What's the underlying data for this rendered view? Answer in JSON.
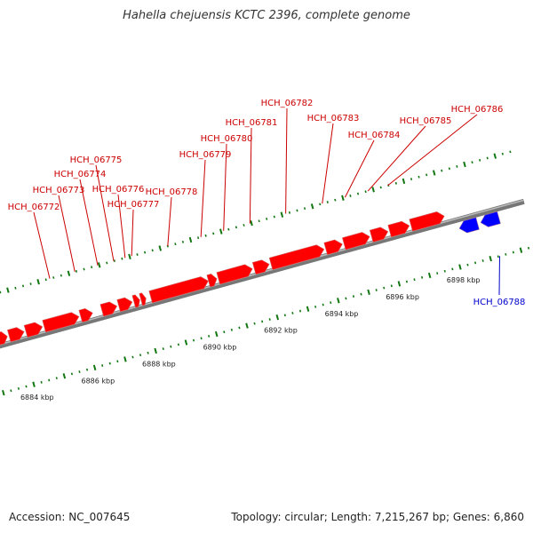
{
  "title": "Hahella chejuensis KCTC 2396, complete genome",
  "footer": {
    "accession": "Accession: NC_007645",
    "summary": "Topology: circular; Length: 7,215,267 bp; Genes: 6,860"
  },
  "colors": {
    "forward_gene": "#ff0000",
    "reverse_gene": "#0000ff",
    "backbone": "#888888",
    "tick": "#117711",
    "forward_label": "#cc0000",
    "reverse_label": "#0000cc"
  },
  "scale": {
    "unit": "kbp",
    "ticks": [
      {
        "kbp": 6884,
        "label": "6884 kbp"
      },
      {
        "kbp": 6886,
        "label": "6886 kbp"
      },
      {
        "kbp": 6888,
        "label": "6888 kbp"
      },
      {
        "kbp": 6890,
        "label": "6890 kbp"
      },
      {
        "kbp": 6892,
        "label": "6892 kbp"
      },
      {
        "kbp": 6894,
        "label": "6894 kbp"
      },
      {
        "kbp": 6896,
        "label": "6896 kbp"
      },
      {
        "kbp": 6898,
        "label": "6898 kbp"
      }
    ]
  },
  "genes": [
    {
      "strand": "+",
      "start": 6883.3,
      "end": 6883.6
    },
    {
      "strand": "+",
      "start": 6883.65,
      "end": 6884.15
    },
    {
      "strand": "+",
      "start": 6884.2,
      "end": 6884.75
    },
    {
      "strand": "+",
      "start": 6884.8,
      "end": 6885.95,
      "label": "HCH_06772"
    },
    {
      "strand": "+",
      "start": 6886.0,
      "end": 6886.4,
      "label": "HCH_06773"
    },
    {
      "strand": "+",
      "start": 6886.7,
      "end": 6887.2,
      "label": "HCH_06774"
    },
    {
      "strand": "+",
      "start": 6887.25,
      "end": 6887.7,
      "label": "HCH_06775"
    },
    {
      "strand": "+",
      "start": 6887.75,
      "end": 6887.95,
      "label": "HCH_06776"
    },
    {
      "strand": "+",
      "start": 6887.98,
      "end": 6888.15,
      "label": "HCH_06777"
    },
    {
      "strand": "+",
      "start": 6888.3,
      "end": 6890.2,
      "label": "HCH_06778"
    },
    {
      "strand": "+",
      "start": 6890.2,
      "end": 6890.48,
      "label": "HCH_06779"
    },
    {
      "strand": "+",
      "start": 6890.52,
      "end": 6891.65,
      "label": "HCH_06780"
    },
    {
      "strand": "+",
      "start": 6891.7,
      "end": 6892.2,
      "label": "HCH_06781"
    },
    {
      "strand": "+",
      "start": 6892.25,
      "end": 6894.0,
      "label": "HCH_06782"
    },
    {
      "strand": "+",
      "start": 6894.05,
      "end": 6894.6,
      "label": "HCH_06783"
    },
    {
      "strand": "+",
      "start": 6894.65,
      "end": 6895.5,
      "label": "HCH_06784"
    },
    {
      "strand": "+",
      "start": 6895.55,
      "end": 6896.1,
      "label": "HCH_06785"
    },
    {
      "strand": "+",
      "start": 6896.15,
      "end": 6896.8,
      "label": "HCH_06786"
    },
    {
      "strand": "+",
      "start": 6896.85,
      "end": 6897.95
    },
    {
      "strand": "-",
      "start": 6898.3,
      "end": 6898.9
    },
    {
      "strand": "-",
      "start": 6899.0,
      "end": 6899.6,
      "label": "HCH_06788"
    }
  ]
}
